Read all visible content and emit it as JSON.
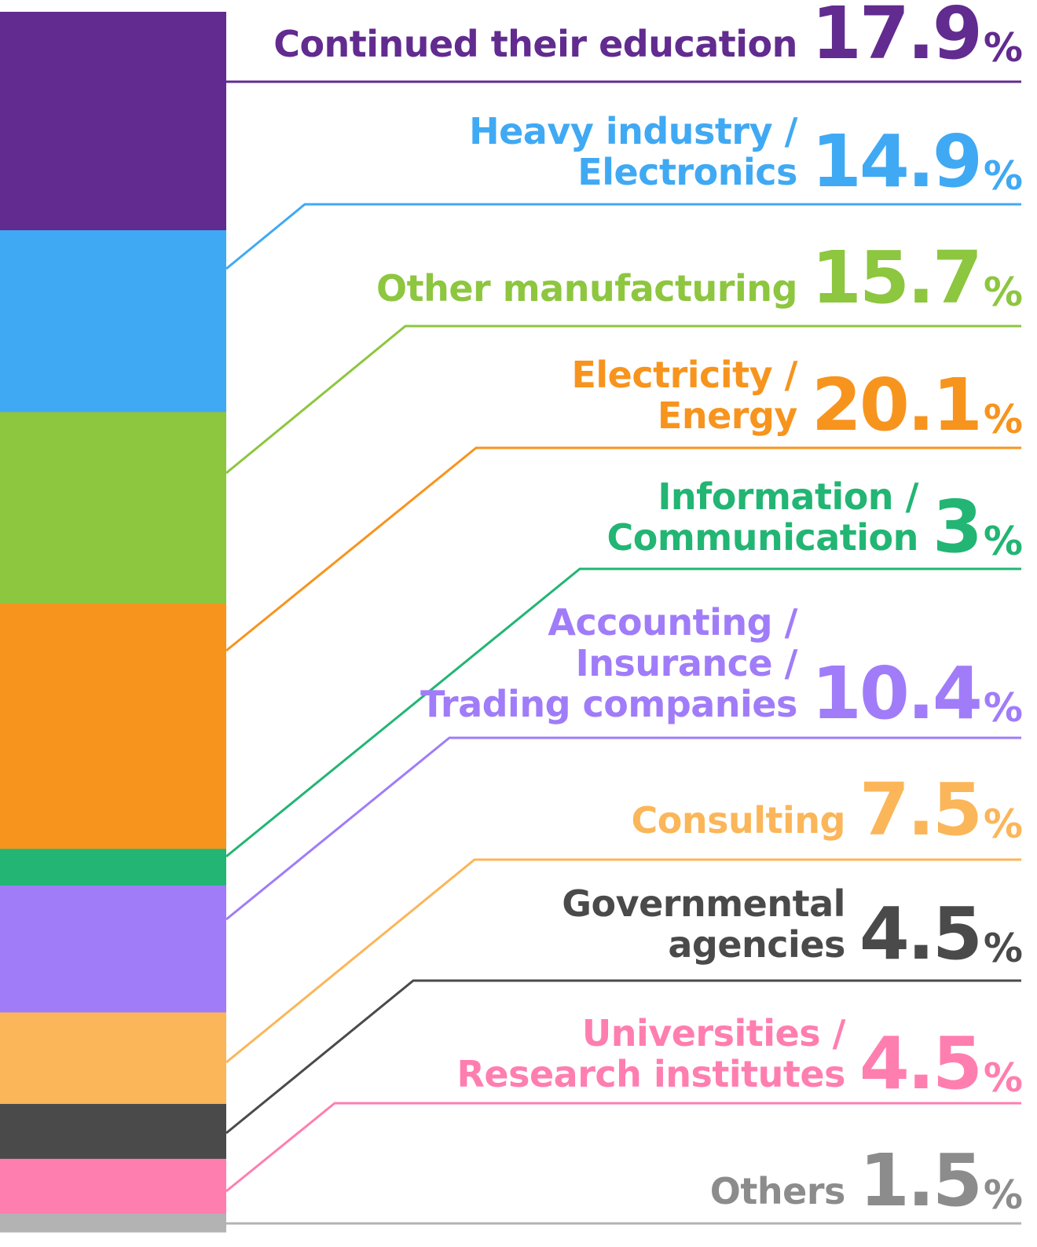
{
  "chart_data": {
    "type": "bar",
    "stacked": true,
    "unit": "%",
    "categories": [
      "Continued their education",
      "Heavy industry / Electronics",
      "Other manufacturing",
      "Electricity / Energy",
      "Information / Communication",
      "Accounting / Insurance / Trading companies",
      "Consulting",
      "Governmental agencies",
      "Universities / Research institutes",
      "Others"
    ],
    "values": [
      17.9,
      14.9,
      15.7,
      20.1,
      3,
      10.4,
      7.5,
      4.5,
      4.5,
      1.5
    ],
    "value_labels": [
      "17.9",
      "14.9",
      "15.7",
      "20.1",
      "3",
      "10.4",
      "7.5",
      "4.5",
      "4.5",
      "1.5"
    ],
    "label_lines": [
      [
        "Continued their education"
      ],
      [
        "Heavy industry /",
        "Electronics"
      ],
      [
        "Other manufacturing"
      ],
      [
        "Electricity /",
        "Energy"
      ],
      [
        "Information /",
        "Communication"
      ],
      [
        "Accounting /",
        "Insurance /",
        "Trading companies"
      ],
      [
        "Consulting"
      ],
      [
        "Governmental",
        "agencies"
      ],
      [
        "Universities /",
        "Research institutes"
      ],
      [
        "Others"
      ]
    ],
    "percent_sign": "%",
    "colors": [
      "#622b8f",
      "#40a9f3",
      "#8dc63f",
      "#f7941e",
      "#22b573",
      "#a07cf9",
      "#fbb659",
      "#4a4a4a",
      "#ff7eb0",
      "#b3b3b3"
    ],
    "text_colors": [
      "#622b8f",
      "#40a9f3",
      "#8dc63f",
      "#f7941e",
      "#22b573",
      "#a07cf9",
      "#fbb659",
      "#4a4a4a",
      "#ff7eb0",
      "#8c8c8c"
    ],
    "ylim": [
      0,
      100
    ]
  }
}
